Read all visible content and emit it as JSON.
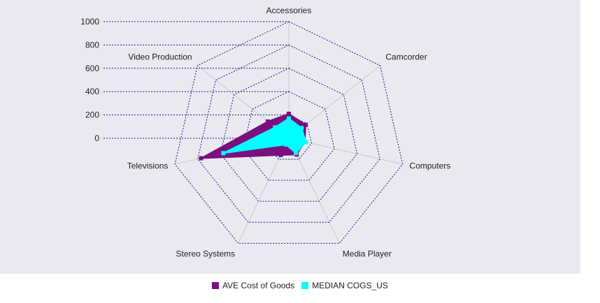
{
  "chart_data": {
    "type": "radar",
    "categories": [
      "Accessories",
      "Camcorder",
      "Computers",
      "Media Player",
      "Stereo Systems",
      "Televisions",
      "Video Production"
    ],
    "r_ticks": [
      "0",
      "200",
      "400",
      "600",
      "800",
      "1000"
    ],
    "rlim": [
      0,
      1000
    ],
    "grid": true,
    "legend": "bottom",
    "background_color": "#e9e9ef",
    "series": [
      {
        "name": "AVE Cost of Goods",
        "color": "#7b0f7e",
        "values": [
          210,
          185,
          140,
          155,
          160,
          770,
          230
        ]
      },
      {
        "name": "MEDIAN COGS_US",
        "color": "#00ffff",
        "values": [
          170,
          140,
          150,
          140,
          60,
          575,
          150
        ]
      }
    ]
  }
}
